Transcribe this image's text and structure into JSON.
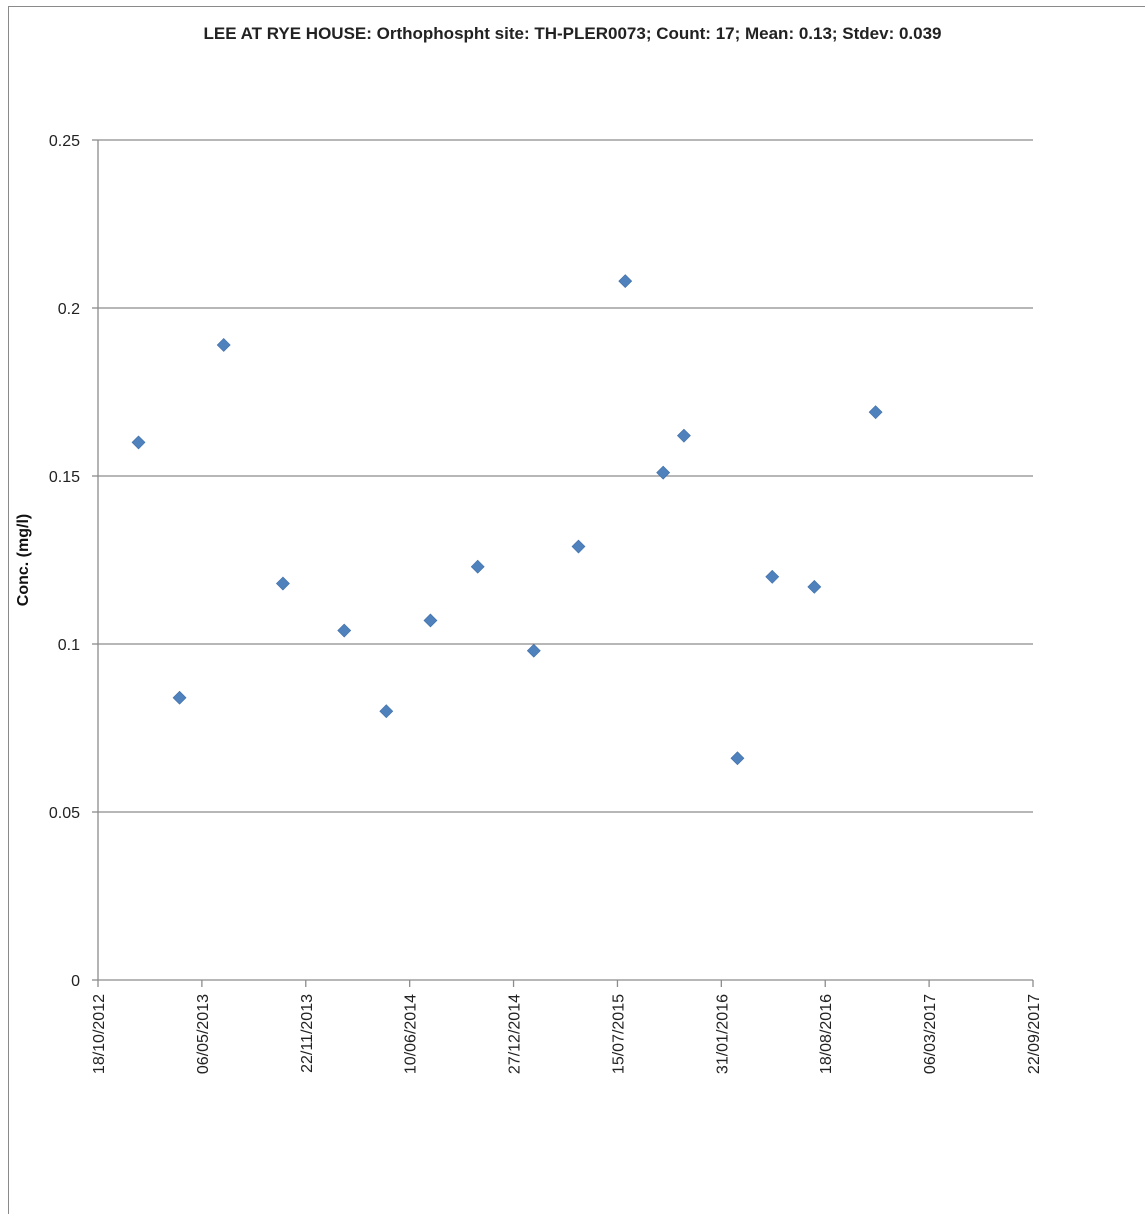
{
  "chart_data": {
    "type": "scatter",
    "title": "LEE AT RYE HOUSE: Orthophospht  site: TH-PLER0073; Count:  17; Mean: 0.13; Stdev: 0.039",
    "ylabel": "Conc. (mg/l)",
    "xlabel": "",
    "x_axis_type": "date",
    "xlim": [
      "2012-10-18",
      "2017-09-22"
    ],
    "ylim": [
      0,
      0.25
    ],
    "grid": "horizontal",
    "legend": "none",
    "marker": "diamond",
    "marker_color": "#4f81bd",
    "x_ticks": [
      "2012-10-18",
      "2013-05-06",
      "2013-11-22",
      "2014-06-10",
      "2014-12-27",
      "2015-07-15",
      "2016-01-31",
      "2016-08-18",
      "2017-03-06",
      "2017-09-22"
    ],
    "x_tick_labels": [
      "18/10/2012",
      "06/05/2013",
      "22/11/2013",
      "10/06/2014",
      "27/12/2014",
      "15/07/2015",
      "31/01/2016",
      "18/08/2016",
      "06/03/2017",
      "22/09/2017"
    ],
    "y_ticks": [
      0,
      0.05,
      0.1,
      0.15,
      0.2,
      0.25
    ],
    "y_tick_labels": [
      "0",
      "0.05",
      "0.1",
      "0.15",
      "0.2",
      "0.25"
    ],
    "points": [
      {
        "x": "2013-01-04",
        "y": 0.16
      },
      {
        "x": "2013-03-24",
        "y": 0.084
      },
      {
        "x": "2013-06-17",
        "y": 0.189
      },
      {
        "x": "2013-10-09",
        "y": 0.118
      },
      {
        "x": "2014-02-04",
        "y": 0.104
      },
      {
        "x": "2014-04-26",
        "y": 0.08
      },
      {
        "x": "2014-07-20",
        "y": 0.107
      },
      {
        "x": "2014-10-19",
        "y": 0.123
      },
      {
        "x": "2015-02-04",
        "y": 0.098
      },
      {
        "x": "2015-05-01",
        "y": 0.129
      },
      {
        "x": "2015-07-30",
        "y": 0.208
      },
      {
        "x": "2015-10-11",
        "y": 0.151
      },
      {
        "x": "2015-11-20",
        "y": 0.162
      },
      {
        "x": "2016-03-02",
        "y": 0.066
      },
      {
        "x": "2016-05-08",
        "y": 0.12
      },
      {
        "x": "2016-07-28",
        "y": 0.117
      },
      {
        "x": "2016-11-23",
        "y": 0.169
      }
    ]
  }
}
